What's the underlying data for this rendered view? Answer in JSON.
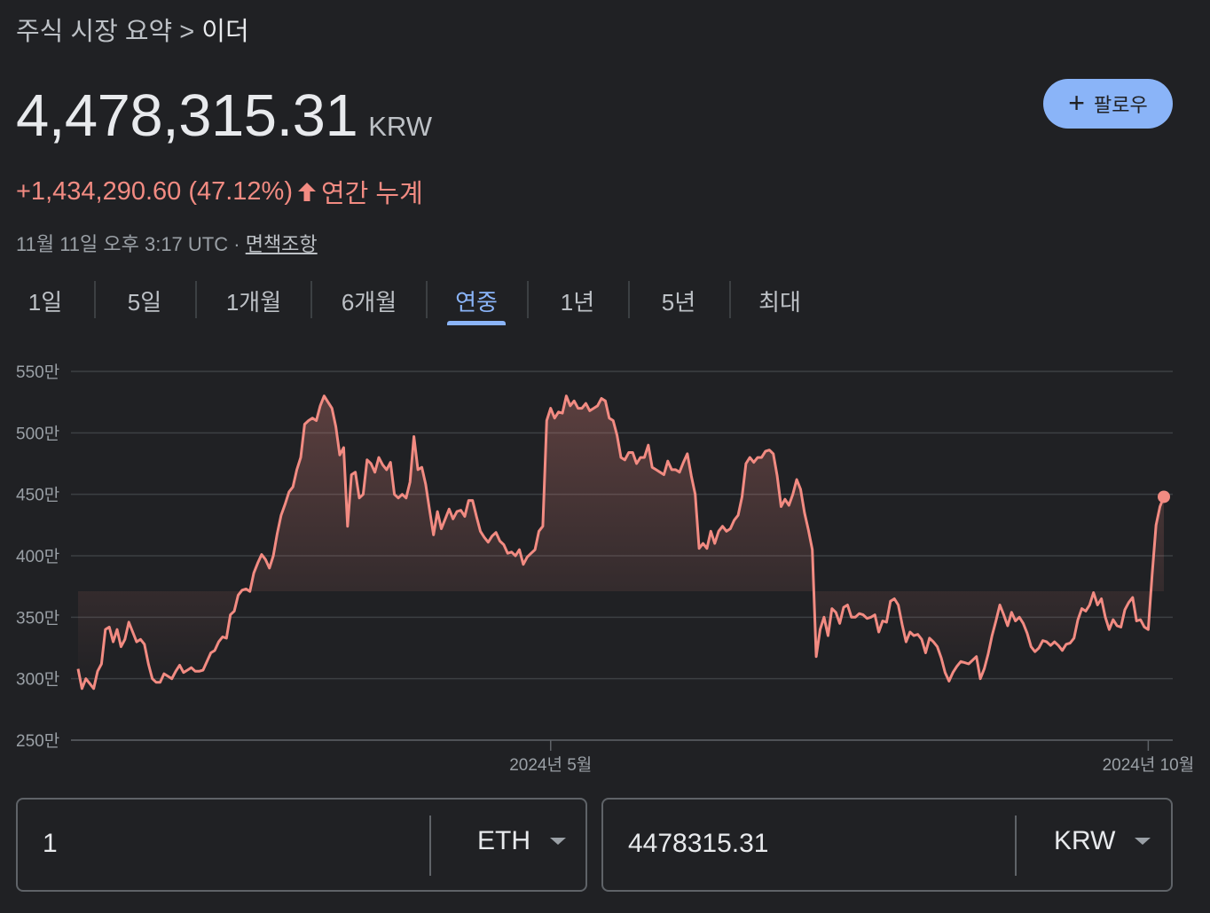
{
  "breadcrumb": {
    "parent": "주식 시장 요약",
    "separator": ">",
    "current": "이더"
  },
  "quote": {
    "price": "4,478,315.31",
    "currency": "KRW",
    "change": "+1,434,290.60 (47.12%)",
    "change_period": "연간 누계",
    "timestamp": "11월 11일 오후 3:17 UTC",
    "dot": "·",
    "disclaimer": "면책조항"
  },
  "follow_button": {
    "label": "팔로우"
  },
  "tabs": [
    "1일",
    "5일",
    "1개월",
    "6개월",
    "연중",
    "1년",
    "5년",
    "최대"
  ],
  "active_tab": "연중",
  "colors": {
    "line": "#f28b82",
    "accent": "#8ab4f8",
    "background": "#202124"
  },
  "chart_data": {
    "type": "area",
    "y_unit": "KRW",
    "y_tick_labels": [
      "250만",
      "300만",
      "350만",
      "400만",
      "450만",
      "500만",
      "550만"
    ],
    "y_ticks": [
      2500000,
      3000000,
      3500000,
      4000000,
      4500000,
      5000000,
      5500000
    ],
    "ylim": [
      2500000,
      5500000
    ],
    "x_ticks": [
      {
        "label": "2024년 5월",
        "index": 121
      },
      {
        "label": "2024년 10월",
        "index": 274
      }
    ],
    "grid": true,
    "values_in_10k": [
      308,
      292,
      300,
      296,
      292,
      306,
      312,
      340,
      342,
      330,
      340,
      326,
      332,
      346,
      338,
      330,
      332,
      328,
      312,
      300,
      297,
      297,
      304,
      302,
      300,
      306,
      311,
      305,
      307,
      309,
      306,
      306,
      307,
      314,
      321,
      323,
      330,
      334,
      333,
      352,
      355,
      368,
      372,
      373,
      371,
      386,
      394,
      401,
      397,
      390,
      400,
      418,
      433,
      442,
      452,
      456,
      470,
      480,
      507,
      510,
      512,
      510,
      522,
      530,
      525,
      520,
      505,
      482,
      488,
      424,
      466,
      468,
      447,
      450,
      478,
      475,
      468,
      480,
      474,
      470,
      476,
      450,
      447,
      450,
      447,
      460,
      497,
      470,
      472,
      458,
      437,
      417,
      436,
      422,
      430,
      438,
      430,
      436,
      437,
      432,
      445,
      445,
      432,
      420,
      415,
      411,
      416,
      419,
      412,
      409,
      402,
      403,
      400,
      405,
      393,
      399,
      402,
      405,
      420,
      424,
      510,
      520,
      512,
      517,
      516,
      530,
      522,
      526,
      520,
      520,
      524,
      518,
      520,
      522,
      528,
      526,
      512,
      510,
      498,
      480,
      478,
      484,
      484,
      475,
      480,
      480,
      490,
      472,
      470,
      468,
      466,
      477,
      470,
      470,
      468,
      476,
      483,
      465,
      450,
      406,
      410,
      406,
      420,
      410,
      420,
      424,
      420,
      422,
      429,
      433,
      448,
      475,
      480,
      476,
      480,
      480,
      485,
      486,
      483,
      465,
      440,
      446,
      441,
      450,
      462,
      454,
      435,
      421,
      405,
      318,
      340,
      350,
      335,
      357,
      354,
      345,
      358,
      360,
      350,
      350,
      353,
      352,
      349,
      350,
      352,
      338,
      347,
      346,
      363,
      365,
      360,
      344,
      330,
      338,
      335,
      336,
      332,
      321,
      333,
      330,
      326,
      317,
      305,
      298,
      305,
      310,
      314,
      313,
      312,
      315,
      318,
      300,
      308,
      320,
      335,
      347,
      360,
      352,
      343,
      354,
      347,
      350,
      345,
      337,
      326,
      322,
      325,
      331,
      330,
      327,
      330,
      327,
      323,
      328,
      329,
      333,
      348,
      357,
      355,
      360,
      370,
      360,
      365,
      350,
      340,
      348,
      343,
      342,
      356,
      362,
      366,
      347,
      348,
      342,
      340,
      385,
      425,
      440,
      448
    ]
  },
  "converter": {
    "from": {
      "amount": "1",
      "currency": "ETH"
    },
    "to": {
      "amount": "4478315.31",
      "currency": "KRW"
    }
  }
}
